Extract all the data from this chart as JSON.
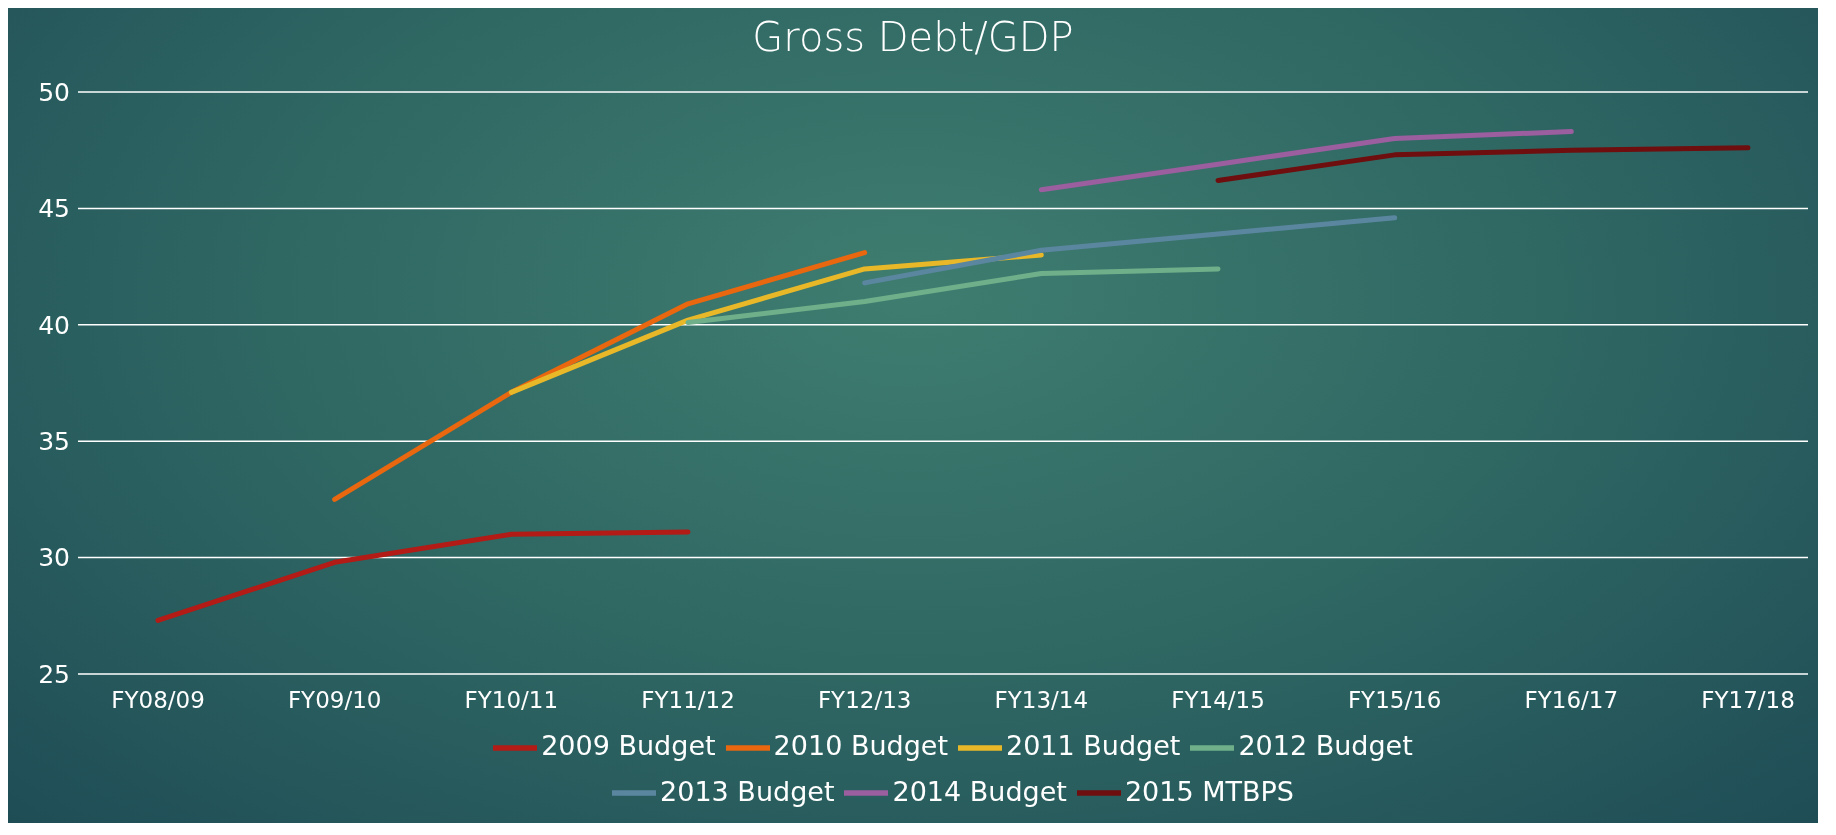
{
  "chart_data": {
    "type": "line",
    "title": "Gross Debt/GDP",
    "categories": [
      "FY08/09",
      "FY09/10",
      "FY10/11",
      "FY11/12",
      "FY12/13",
      "FY13/14",
      "FY14/15",
      "FY15/16",
      "FY16/17",
      "FY17/18"
    ],
    "series": [
      {
        "name": "2009 Budget",
        "color": "#b31b16",
        "values": [
          27.3,
          29.8,
          31.0,
          31.1,
          null,
          null,
          null,
          null,
          null,
          null
        ]
      },
      {
        "name": "2010 Budget",
        "color": "#e8670f",
        "values": [
          null,
          32.5,
          37.1,
          40.9,
          43.1,
          null,
          null,
          null,
          null,
          null
        ]
      },
      {
        "name": "2011 Budget",
        "color": "#e8b828",
        "values": [
          null,
          null,
          37.1,
          40.2,
          42.4,
          43.0,
          null,
          null,
          null,
          null
        ]
      },
      {
        "name": "2012 Budget",
        "color": "#6fb08a",
        "values": [
          null,
          null,
          null,
          40.1,
          41.0,
          42.2,
          42.4,
          null,
          null,
          null
        ]
      },
      {
        "name": "2013 Budget",
        "color": "#5b86a0",
        "values": [
          null,
          null,
          null,
          null,
          41.8,
          43.2,
          43.9,
          44.6,
          null,
          null
        ]
      },
      {
        "name": "2014 Budget",
        "color": "#9b5e9e",
        "values": [
          null,
          null,
          null,
          null,
          null,
          45.8,
          46.9,
          48.0,
          48.3,
          null
        ]
      },
      {
        "name": "2015 MTBPS",
        "color": "#6e0e0e",
        "values": [
          null,
          null,
          null,
          null,
          null,
          null,
          46.2,
          47.3,
          47.5,
          47.6
        ]
      }
    ],
    "ylim": [
      25,
      50
    ],
    "yticks": [
      25,
      30,
      35,
      40,
      45,
      50
    ],
    "grid": "y",
    "legend": "bottom",
    "marker": "none",
    "line_style": "solid"
  }
}
